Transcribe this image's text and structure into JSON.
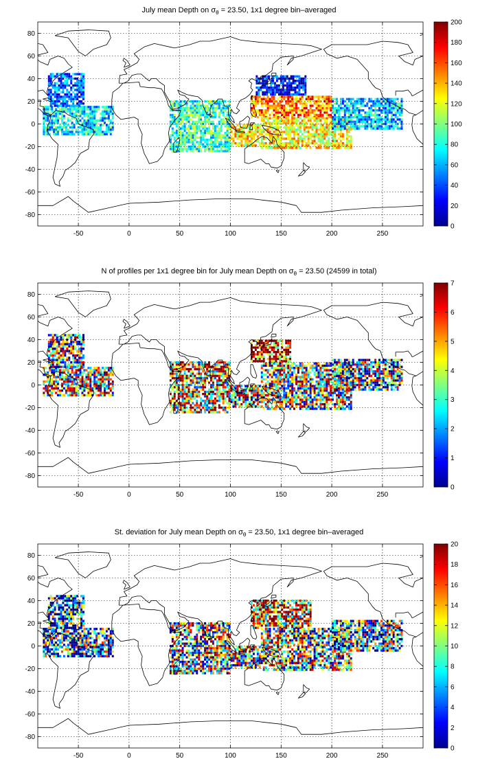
{
  "figure": {
    "panels": [
      {
        "title_main": "July mean Depth on σ",
        "title_sub": "θ",
        "title_rest": " = 23.50, 1x1 degree bin–averaged",
        "colorbar_ticks": [
          "0",
          "20",
          "40",
          "60",
          "80",
          "100",
          "120",
          "140",
          "160",
          "180",
          "200"
        ]
      },
      {
        "title_main": "N of profiles per 1x1 degree bin for July mean Depth on σ",
        "title_sub": "θ",
        "title_rest": " = 23.50 (24599 in total)",
        "colorbar_ticks": [
          "0",
          "1",
          "2",
          "3",
          "4",
          "5",
          "6",
          "7"
        ]
      },
      {
        "title_main": "St. deviation for July mean Depth on σ",
        "title_sub": "θ",
        "title_rest": " = 23.50, 1x1 degree bin–averaged",
        "colorbar_ticks": [
          "0",
          "2",
          "4",
          "6",
          "8",
          "10",
          "12",
          "14",
          "16",
          "18",
          "20"
        ]
      }
    ],
    "colormap": "jet"
  },
  "chart_data": [
    {
      "type": "heatmap",
      "title": "July mean Depth on σθ = 23.50, 1x1 degree bin–averaged",
      "xlim": [
        -90,
        290
      ],
      "ylim": [
        -90,
        90
      ],
      "xticks": [
        -50,
        0,
        50,
        100,
        150,
        200,
        250
      ],
      "yticks": [
        -80,
        -60,
        -40,
        -20,
        0,
        20,
        40,
        60,
        80
      ],
      "grid": true,
      "clim": [
        0,
        200
      ],
      "colorbar": "right",
      "regions": [
        {
          "x": [
            -85,
            -15
          ],
          "y": [
            -10,
            15
          ],
          "value": 70
        },
        {
          "x": [
            -80,
            -45
          ],
          "y": [
            15,
            45
          ],
          "value": 45
        },
        {
          "x": [
            40,
            100
          ],
          "y": [
            -25,
            20
          ],
          "value": 85
        },
        {
          "x": [
            100,
            130
          ],
          "y": [
            -20,
            0
          ],
          "value": 125
        },
        {
          "x": [
            125,
            175
          ],
          "y": [
            25,
            42
          ],
          "value": 30
        },
        {
          "x": [
            120,
            200
          ],
          "y": [
            5,
            25
          ],
          "value": 150
        },
        {
          "x": [
            130,
            220
          ],
          "y": [
            -22,
            5
          ],
          "value": 125
        },
        {
          "x": [
            200,
            270
          ],
          "y": [
            -5,
            22
          ],
          "value": 65
        }
      ]
    },
    {
      "type": "heatmap",
      "title": "N of profiles per 1x1 degree bin for July mean Depth on σθ = 23.50 (24599 in total)",
      "xlim": [
        -90,
        290
      ],
      "ylim": [
        -90,
        90
      ],
      "xticks": [
        -50,
        0,
        50,
        100,
        150,
        200,
        250
      ],
      "yticks": [
        -80,
        -60,
        -40,
        -20,
        0,
        20,
        40,
        60,
        80
      ],
      "grid": true,
      "clim": [
        0,
        7
      ],
      "colorbar": "right",
      "total_profiles": 24599,
      "regions": [
        {
          "x": [
            -85,
            -15
          ],
          "y": [
            -10,
            15
          ],
          "value": 4
        },
        {
          "x": [
            -80,
            -45
          ],
          "y": [
            15,
            45
          ],
          "value": 3
        },
        {
          "x": [
            40,
            100
          ],
          "y": [
            -25,
            20
          ],
          "value": 5
        },
        {
          "x": [
            100,
            130
          ],
          "y": [
            -20,
            0
          ],
          "value": 4
        },
        {
          "x": [
            120,
            160
          ],
          "y": [
            20,
            40
          ],
          "value": 6.5
        },
        {
          "x": [
            130,
            220
          ],
          "y": [
            -22,
            20
          ],
          "value": 4
        },
        {
          "x": [
            200,
            270
          ],
          "y": [
            -5,
            22
          ],
          "value": 3
        }
      ]
    },
    {
      "type": "heatmap",
      "title": "St. deviation for July mean Depth on σθ = 23.50, 1x1 degree bin–averaged",
      "xlim": [
        -90,
        290
      ],
      "ylim": [
        -90,
        90
      ],
      "xticks": [
        -50,
        0,
        50,
        100,
        150,
        200,
        250
      ],
      "yticks": [
        -80,
        -60,
        -40,
        -20,
        0,
        20,
        40,
        60,
        80
      ],
      "grid": true,
      "clim": [
        0,
        20
      ],
      "colorbar": "right",
      "regions": [
        {
          "x": [
            -85,
            -15
          ],
          "y": [
            -10,
            15
          ],
          "value": 6
        },
        {
          "x": [
            -80,
            -45
          ],
          "y": [
            15,
            45
          ],
          "value": 5
        },
        {
          "x": [
            40,
            100
          ],
          "y": [
            -25,
            20
          ],
          "value": 10
        },
        {
          "x": [
            100,
            130
          ],
          "y": [
            -20,
            0
          ],
          "value": 11
        },
        {
          "x": [
            120,
            180
          ],
          "y": [
            15,
            40
          ],
          "value": 16
        },
        {
          "x": [
            130,
            220
          ],
          "y": [
            -22,
            15
          ],
          "value": 10
        },
        {
          "x": [
            200,
            270
          ],
          "y": [
            -5,
            22
          ],
          "value": 7
        }
      ]
    }
  ]
}
